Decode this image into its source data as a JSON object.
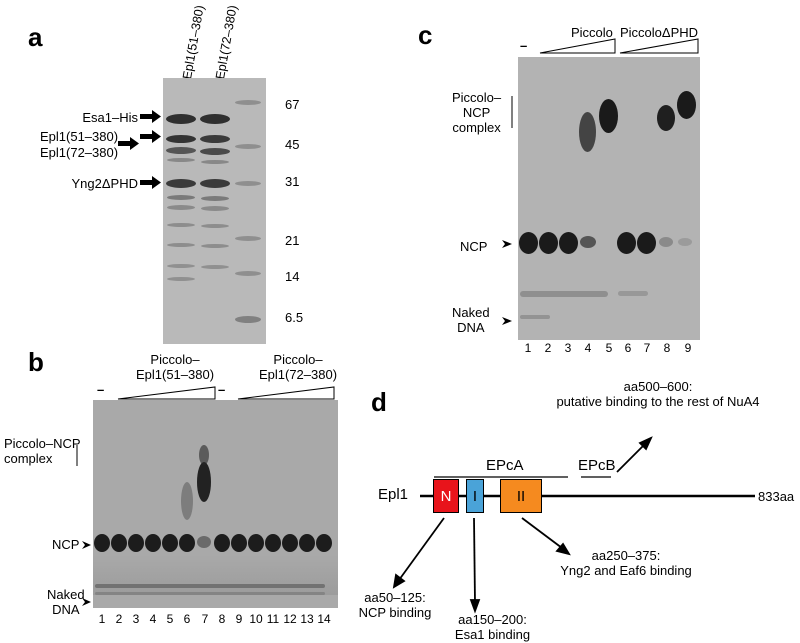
{
  "panels": {
    "a": {
      "letter": "a",
      "lanes": [
        "Epl1(51–380)",
        "Epl1(72–380)"
      ],
      "bands": {
        "esa1": "Esa1–His",
        "epl1_51": "Epl1(51–380)",
        "epl1_72": "Epl1(72–380)",
        "yng2": "Yng2ΔPHD"
      },
      "markers": [
        "67",
        "45",
        "31",
        "21",
        "14",
        "6.5"
      ]
    },
    "b": {
      "letter": "b",
      "dash1": "–",
      "dash2": "–",
      "group1": [
        "Piccolo–",
        "Epl1(51–380)"
      ],
      "group2": [
        "Piccolo–",
        "Epl1(72–380)"
      ],
      "complex_label": [
        "Piccolo–NCP",
        "complex"
      ],
      "ncp": "NCP",
      "naked": [
        "Naked",
        "DNA"
      ],
      "lanes": [
        "1",
        "2",
        "3",
        "4",
        "5",
        "6",
        "7",
        "8",
        "9",
        "10",
        "11",
        "12",
        "13",
        "14"
      ]
    },
    "c": {
      "letter": "c",
      "dash": "–",
      "group1": "Piccolo",
      "group2": "PiccoloΔPHD",
      "complex_label": [
        "Piccolo–",
        "NCP",
        "complex"
      ],
      "ncp": "NCP",
      "naked": [
        "Naked",
        "DNA"
      ],
      "lanes": [
        "1",
        "2",
        "3",
        "4",
        "5",
        "6",
        "7",
        "8",
        "9"
      ]
    },
    "d": {
      "letter": "d",
      "protein": "Epl1",
      "length": "833aa",
      "epca": "EPcA",
      "epcb": "EPcB",
      "domains": {
        "n": "N",
        "i": "I",
        "ii": "II"
      },
      "annotations": {
        "top": [
          "aa500–600:",
          "putative binding to the rest of NuA4"
        ],
        "ii": [
          "aa250–375:",
          "Yng2 and Eaf6 binding"
        ],
        "n": [
          "aa50–125:",
          "NCP binding"
        ],
        "i": [
          "aa150–200:",
          "Esa1 binding"
        ]
      },
      "colors": {
        "n": "#e8141b",
        "i": "#4aa3d8",
        "ii": "#f58a1f"
      }
    }
  }
}
